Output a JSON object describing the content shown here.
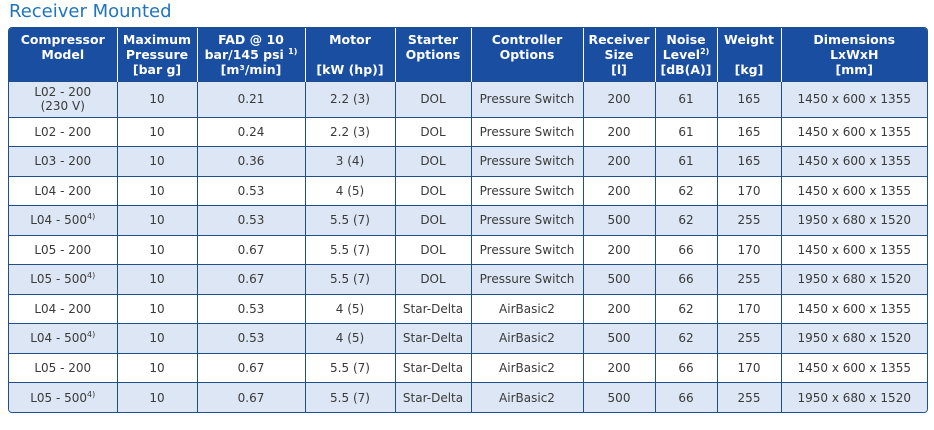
{
  "title": "Receiver Mounted",
  "headers": [
    {
      "l1": "Compressor",
      "l2": "Model",
      "l3": ""
    },
    {
      "l1": "Maximum",
      "l2": "Pressure",
      "l3": "[bar g]"
    },
    {
      "l1": "FAD @ 10",
      "l2": "bar/145 psi",
      "sup2": "1)",
      "l3": "[m³/min]"
    },
    {
      "l1": "Motor",
      "l2": "",
      "l3": "[kW (hp)]"
    },
    {
      "l1": "Starter",
      "l2": "Options",
      "l3": ""
    },
    {
      "l1": "Controller",
      "l2": "Options",
      "l3": ""
    },
    {
      "l1": "Receiver",
      "l2": "Size",
      "l3": "[l]"
    },
    {
      "l1": "Noise",
      "l2": "Level",
      "sup2": "2)",
      "l3": "[dB(A)]"
    },
    {
      "l1": "Weight",
      "l2": "",
      "l3": "[kg]"
    },
    {
      "l1": "Dimensions",
      "l2": "LxWxH",
      "l3": "[mm]"
    }
  ],
  "rows": [
    {
      "model": "L02 - 200",
      "model_sub": "(230 V)",
      "model_sup": "",
      "pressure": "10",
      "fad": "0.21",
      "motor": "2.2 (3)",
      "starter": "DOL",
      "controller": "Pressure Switch",
      "receiver": "200",
      "noise": "61",
      "weight": "165",
      "dims": "1450 x 600 x 1355"
    },
    {
      "model": "L02 - 200",
      "model_sub": "",
      "model_sup": "",
      "pressure": "10",
      "fad": "0.24",
      "motor": "2.2 (3)",
      "starter": "DOL",
      "controller": "Pressure Switch",
      "receiver": "200",
      "noise": "61",
      "weight": "165",
      "dims": "1450 x 600 x 1355"
    },
    {
      "model": "L03 - 200",
      "model_sub": "",
      "model_sup": "",
      "pressure": "10",
      "fad": "0.36",
      "motor": "3 (4)",
      "starter": "DOL",
      "controller": "Pressure Switch",
      "receiver": "200",
      "noise": "61",
      "weight": "165",
      "dims": "1450 x 600 x 1355"
    },
    {
      "model": "L04 - 200",
      "model_sub": "",
      "model_sup": "",
      "pressure": "10",
      "fad": "0.53",
      "motor": "4 (5)",
      "starter": "DOL",
      "controller": "Pressure Switch",
      "receiver": "200",
      "noise": "62",
      "weight": "170",
      "dims": "1450 x 600 x 1355"
    },
    {
      "model": "L04 - 500",
      "model_sub": "",
      "model_sup": "4)",
      "pressure": "10",
      "fad": "0.53",
      "motor": "5.5 (7)",
      "starter": "DOL",
      "controller": "Pressure Switch",
      "receiver": "500",
      "noise": "62",
      "weight": "255",
      "dims": "1950 x 680 x 1520"
    },
    {
      "model": "L05 - 200",
      "model_sub": "",
      "model_sup": "",
      "pressure": "10",
      "fad": "0.67",
      "motor": "5.5 (7)",
      "starter": "DOL",
      "controller": "Pressure Switch",
      "receiver": "200",
      "noise": "66",
      "weight": "170",
      "dims": "1450 x 600 x 1355"
    },
    {
      "model": "L05 - 500",
      "model_sub": "",
      "model_sup": "4)",
      "pressure": "10",
      "fad": "0.67",
      "motor": "5.5 (7)",
      "starter": "DOL",
      "controller": "Pressure Switch",
      "receiver": "500",
      "noise": "66",
      "weight": "255",
      "dims": "1950 x 680 x 1520"
    },
    {
      "model": "L04 - 200",
      "model_sub": "",
      "model_sup": "",
      "pressure": "10",
      "fad": "0.53",
      "motor": "4 (5)",
      "starter": "Star-Delta",
      "controller": "AirBasic2",
      "receiver": "200",
      "noise": "62",
      "weight": "170",
      "dims": "1450 x 600 x 1355"
    },
    {
      "model": "L04 - 500",
      "model_sub": "",
      "model_sup": "4)",
      "pressure": "10",
      "fad": "0.53",
      "motor": "4 (5)",
      "starter": "Star-Delta",
      "controller": "AirBasic2",
      "receiver": "500",
      "noise": "62",
      "weight": "255",
      "dims": "1950 x 680 x 1520"
    },
    {
      "model": "L05 - 200",
      "model_sub": "",
      "model_sup": "",
      "pressure": "10",
      "fad": "0.67",
      "motor": "5.5 (7)",
      "starter": "Star-Delta",
      "controller": "AirBasic2",
      "receiver": "200",
      "noise": "66",
      "weight": "170",
      "dims": "1450 x 600 x 1355"
    },
    {
      "model": "L05 - 500",
      "model_sub": "",
      "model_sup": "4)",
      "pressure": "10",
      "fad": "0.67",
      "motor": "5.5 (7)",
      "starter": "Star-Delta",
      "controller": "AirBasic2",
      "receiver": "500",
      "noise": "66",
      "weight": "255",
      "dims": "1950 x 680 x 1520"
    }
  ],
  "colors": {
    "title": "#1f74bf",
    "header_bg": "#1a4ea1",
    "header_text": "#ffffff",
    "row_shade": "#dde6f4",
    "row_plain": "#ffffff",
    "border": "#1f4f8f"
  }
}
